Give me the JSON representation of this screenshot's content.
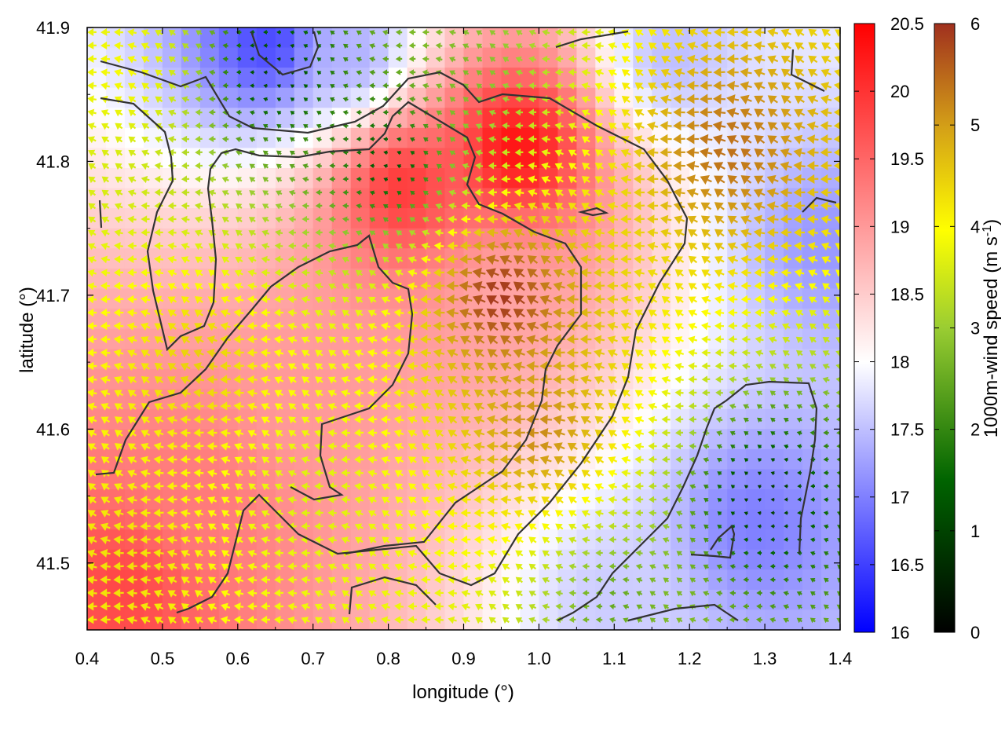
{
  "chart_data": {
    "type": "heatmap",
    "xlabel": "longitude (°)",
    "ylabel": "latitude (°)",
    "xlim": [
      0.4,
      1.4
    ],
    "ylim": [
      41.45,
      41.9
    ],
    "x_ticks": [
      "0.4",
      "0.5",
      "0.6",
      "0.7",
      "0.8",
      "0.9",
      "1.0",
      "1.1",
      "1.2",
      "1.3",
      "1.4"
    ],
    "x_tick_values": [
      0.4,
      0.5,
      0.6,
      0.7,
      0.8,
      0.9,
      1.0,
      1.1,
      1.2,
      1.3,
      1.4
    ],
    "y_ticks": [
      "41.5",
      "41.6",
      "41.7",
      "41.8",
      "41.9"
    ],
    "y_tick_values": [
      41.5,
      41.6,
      41.7,
      41.8,
      41.9
    ],
    "temperature_colorbar": {
      "range": [
        16,
        20.5
      ],
      "ticks": [
        "16",
        "16.5",
        "17",
        "17.5",
        "18",
        "18.5",
        "19",
        "19.5",
        "20",
        "20.5"
      ],
      "tick_values": [
        16,
        16.5,
        17,
        17.5,
        18,
        18.5,
        19,
        19.5,
        20,
        20.5
      ],
      "colors": [
        "#0000ff",
        "#ffffff",
        "#ff0000"
      ]
    },
    "wind_colorbar": {
      "label_main": "1000m-wind speed (m s",
      "label_sup": "-1",
      "label_end": ")",
      "range": [
        0,
        6
      ],
      "ticks": [
        "0",
        "1",
        "2",
        "3",
        "4",
        "5",
        "6"
      ],
      "tick_values": [
        0,
        1,
        2,
        3,
        4,
        5,
        6
      ],
      "colors": [
        "#000000",
        "#006400",
        "#9acd32",
        "#ffff00",
        "#d4a017",
        "#a0301e"
      ]
    },
    "temperature_field_centers": [
      {
        "lon": 0.55,
        "lat": 41.55,
        "value": 19.3
      },
      {
        "lon": 0.45,
        "lat": 41.48,
        "value": 19.8
      },
      {
        "lon": 0.82,
        "lat": 41.78,
        "value": 19.9
      },
      {
        "lon": 0.97,
        "lat": 41.81,
        "value": 20.3
      },
      {
        "lon": 0.64,
        "lat": 41.89,
        "value": 16.6
      },
      {
        "lon": 0.75,
        "lat": 41.88,
        "value": 17.4
      },
      {
        "lon": 1.29,
        "lat": 41.53,
        "value": 17.0
      },
      {
        "lon": 1.38,
        "lat": 41.74,
        "value": 17.2
      },
      {
        "lon": 1.18,
        "lat": 41.88,
        "value": 17.5
      },
      {
        "lon": 1.1,
        "lat": 41.47,
        "value": 17.6
      },
      {
        "lon": 0.95,
        "lat": 41.7,
        "value": 18.9
      },
      {
        "lon": 0.7,
        "lat": 41.62,
        "value": 19.0
      }
    ],
    "wind_speed_regions": [
      {
        "lon": 0.95,
        "lat": 41.7,
        "speed": 5.9
      },
      {
        "lon": 1.25,
        "lat": 41.81,
        "speed": 5.3
      },
      {
        "lon": 1.0,
        "lat": 41.6,
        "speed": 5.0
      },
      {
        "lon": 0.55,
        "lat": 41.65,
        "speed": 4.2
      },
      {
        "lon": 0.45,
        "lat": 41.5,
        "speed": 4.0
      },
      {
        "lon": 0.7,
        "lat": 41.55,
        "speed": 3.2
      },
      {
        "lon": 0.8,
        "lat": 41.8,
        "speed": 1.0
      },
      {
        "lon": 0.65,
        "lat": 41.87,
        "speed": 0.8
      },
      {
        "lon": 1.3,
        "lat": 41.55,
        "speed": 0.7
      },
      {
        "lon": 0.9,
        "lat": 41.87,
        "speed": 2.2
      },
      {
        "lon": 1.1,
        "lat": 41.47,
        "speed": 2.0
      },
      {
        "lon": 0.45,
        "lat": 41.87,
        "speed": 3.5
      }
    ],
    "wind_direction": {
      "u": -0.94,
      "v": 0.3
    }
  }
}
